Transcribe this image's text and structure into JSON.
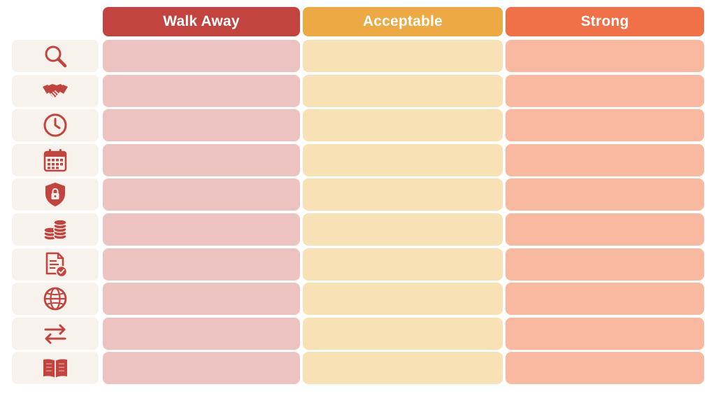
{
  "colors": {
    "header_walk_away": "#c3443e",
    "header_acceptable": "#eca944",
    "header_strong": "#f07048",
    "cell_walk_away": "#ecc3c1",
    "cell_acceptable": "#f8e1b5",
    "cell_strong": "#f8b9a0",
    "icon_cell_bg": "#f7f2ec",
    "icon_color": "#c3443e"
  },
  "columns": [
    {
      "key": "walk_away",
      "label": "Walk Away"
    },
    {
      "key": "acceptable",
      "label": "Acceptable"
    },
    {
      "key": "strong",
      "label": "Strong"
    }
  ],
  "rows": [
    {
      "icon": "search-icon"
    },
    {
      "icon": "handshake-icon"
    },
    {
      "icon": "clock-icon"
    },
    {
      "icon": "calendar-icon"
    },
    {
      "icon": "shield-lock-icon"
    },
    {
      "icon": "coins-icon"
    },
    {
      "icon": "document-check-icon"
    },
    {
      "icon": "globe-icon"
    },
    {
      "icon": "swap-arrows-icon"
    },
    {
      "icon": "open-book-icon"
    }
  ]
}
